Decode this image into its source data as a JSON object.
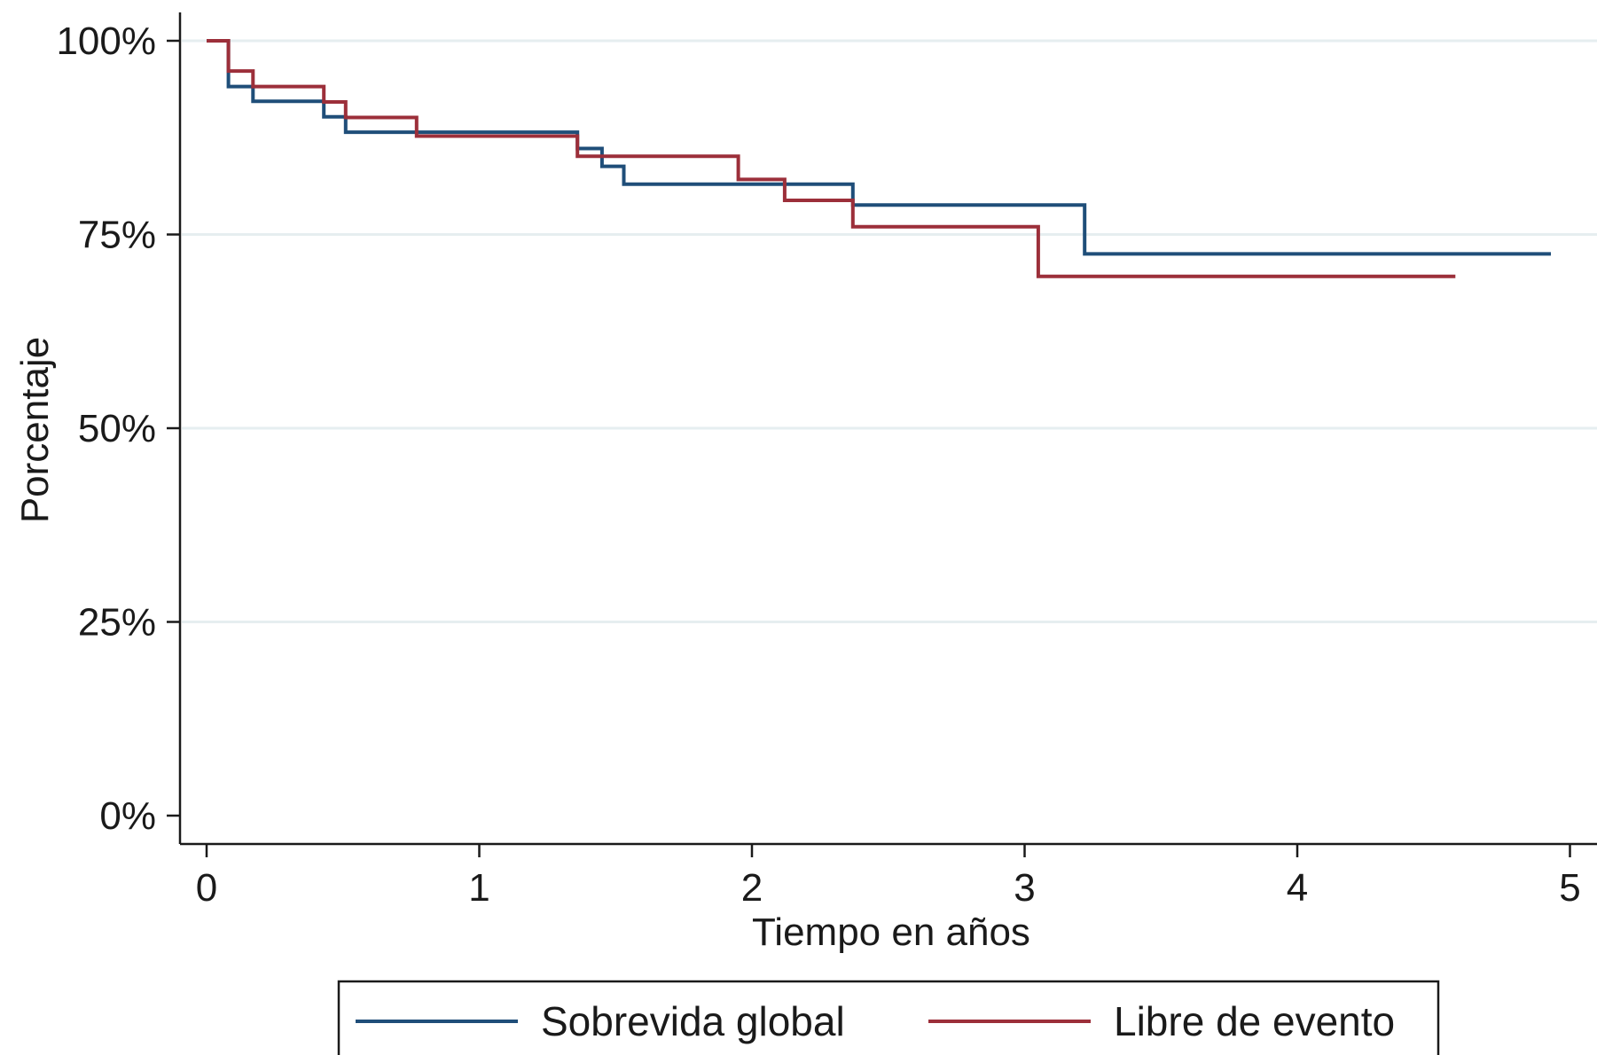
{
  "chart_data": {
    "type": "line",
    "step": true,
    "xlabel": "Tiempo en años",
    "ylabel": "Porcentaje",
    "xlim": [
      0,
      5
    ],
    "ylim": [
      0,
      100
    ],
    "x_ticks": [
      "0",
      "1",
      "2",
      "3",
      "4",
      "5"
    ],
    "y_ticks": [
      "0%",
      "25%",
      "50%",
      "75%",
      "100%"
    ],
    "grid": "horizontal",
    "legend_position": "bottom",
    "series": [
      {
        "name": "Sobrevida global",
        "color": "#1f4e79",
        "points": [
          [
            0,
            100
          ],
          [
            0.08,
            100
          ],
          [
            0.08,
            94.1
          ],
          [
            0.17,
            94.1
          ],
          [
            0.17,
            92.2
          ],
          [
            0.43,
            92.2
          ],
          [
            0.43,
            90.2
          ],
          [
            0.51,
            90.2
          ],
          [
            0.51,
            88.2
          ],
          [
            1.36,
            88.2
          ],
          [
            1.36,
            86.1
          ],
          [
            1.45,
            86.1
          ],
          [
            1.45,
            83.8
          ],
          [
            1.53,
            83.8
          ],
          [
            1.53,
            81.5
          ],
          [
            2.37,
            81.5
          ],
          [
            2.37,
            78.8
          ],
          [
            3.22,
            78.8
          ],
          [
            3.22,
            72.5
          ],
          [
            4.93,
            72.5
          ]
        ]
      },
      {
        "name": "Libre de evento",
        "color": "#9c2f3a",
        "points": [
          [
            0,
            100
          ],
          [
            0.08,
            100
          ],
          [
            0.08,
            96.1
          ],
          [
            0.17,
            96.1
          ],
          [
            0.17,
            94.1
          ],
          [
            0.43,
            94.1
          ],
          [
            0.43,
            92.1
          ],
          [
            0.51,
            92.1
          ],
          [
            0.51,
            90.1
          ],
          [
            0.77,
            90.1
          ],
          [
            0.77,
            87.7
          ],
          [
            1.36,
            87.7
          ],
          [
            1.36,
            85.1
          ],
          [
            1.95,
            85.1
          ],
          [
            1.95,
            82.1
          ],
          [
            2.12,
            82.1
          ],
          [
            2.12,
            79.4
          ],
          [
            2.37,
            79.4
          ],
          [
            2.37,
            76.0
          ],
          [
            3.05,
            76.0
          ],
          [
            3.05,
            69.6
          ],
          [
            4.58,
            69.6
          ]
        ]
      }
    ]
  }
}
